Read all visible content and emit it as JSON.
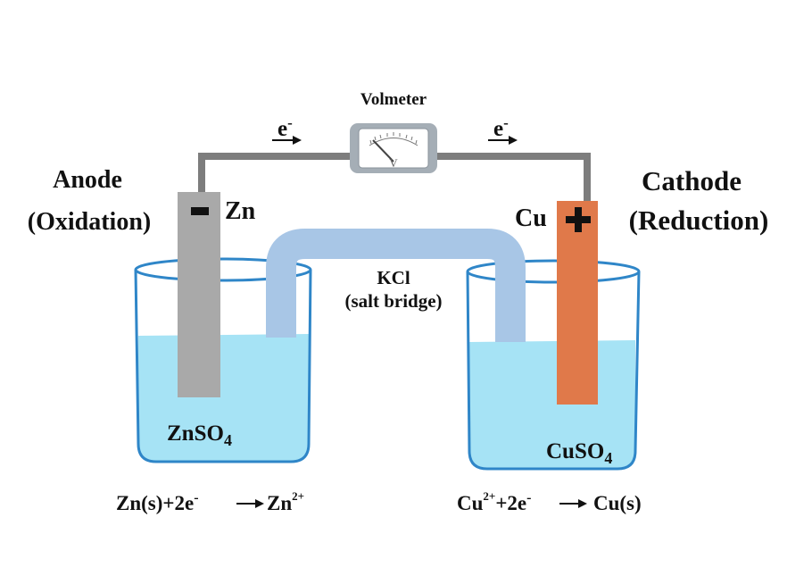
{
  "voltmeter": {
    "label": "Volmeter",
    "dial_letter": "V"
  },
  "electron_flow": {
    "left": "e",
    "right": "e",
    "superscript": "-"
  },
  "anode": {
    "title": "Anode",
    "subtitle": "(Oxidation)",
    "metal": "Zn",
    "sign": "minus",
    "solution": "ZnSO",
    "solution_sub": "4"
  },
  "cathode": {
    "title": "Cathode",
    "subtitle": "(Reduction)",
    "metal": "Cu",
    "sign": "plus",
    "solution": "CuSO",
    "solution_sub": "4"
  },
  "salt_bridge": {
    "line1": "KCl",
    "line2": "(salt bridge)"
  },
  "equations": {
    "anode": {
      "part1": "Zn(s)+2e",
      "sup1": "-",
      "part2": "Zn",
      "sup2": "2+"
    },
    "cathode": {
      "part1": "Cu",
      "sup1": "2+",
      "part2": "+2e",
      "sup2": "-",
      "part3": "Cu(s)"
    }
  },
  "colors": {
    "wire": "#7d7d7d",
    "zinc_electrode": "#a9a9a9",
    "copper_electrode": "#e0794a",
    "solution": "#a6e3f5",
    "beaker_outline": "#2f86c8",
    "salt_bridge": "#a8c6e6"
  }
}
